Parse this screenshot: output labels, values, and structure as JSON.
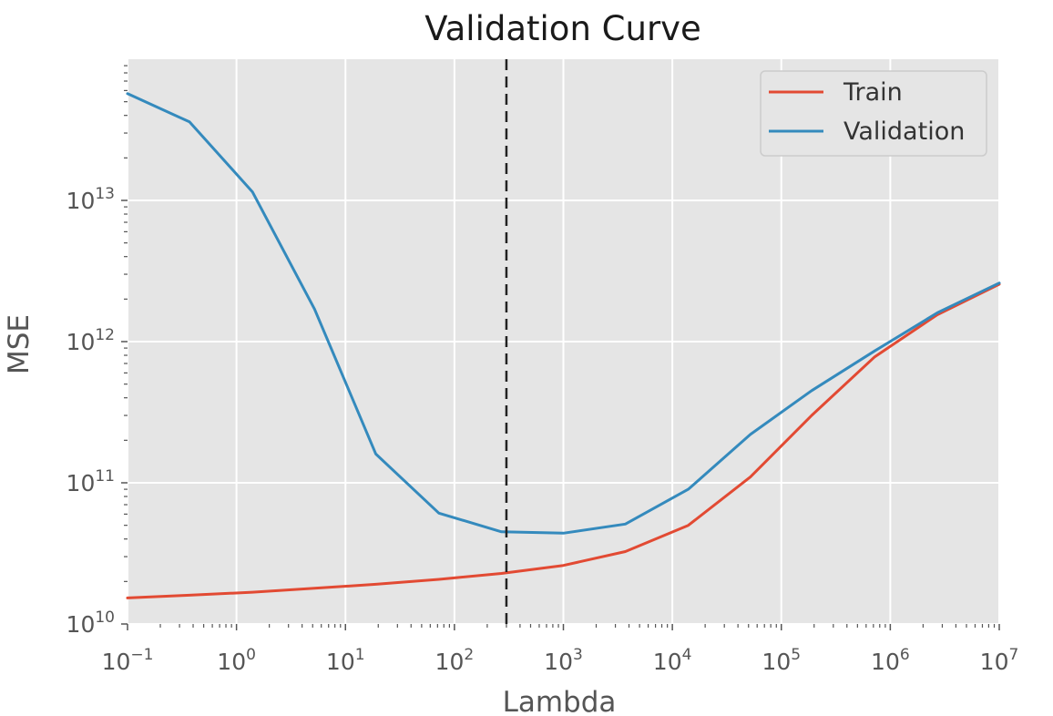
{
  "chart_data": {
    "type": "line",
    "title": "Validation Curve",
    "xlabel": "Lambda",
    "ylabel": "MSE",
    "xscale": "log",
    "yscale": "log",
    "xlim": [
      0.1,
      10000000
    ],
    "ylim": [
      10000000000,
      100000000000000
    ],
    "x_ticks": [
      {
        "base": "10",
        "exp": "−1",
        "value": 0.1
      },
      {
        "base": "10",
        "exp": "0",
        "value": 1
      },
      {
        "base": "10",
        "exp": "1",
        "value": 10
      },
      {
        "base": "10",
        "exp": "2",
        "value": 100
      },
      {
        "base": "10",
        "exp": "3",
        "value": 1000
      },
      {
        "base": "10",
        "exp": "4",
        "value": 10000
      },
      {
        "base": "10",
        "exp": "5",
        "value": 100000
      },
      {
        "base": "10",
        "exp": "6",
        "value": 1000000
      },
      {
        "base": "10",
        "exp": "7",
        "value": 10000000
      }
    ],
    "y_ticks": [
      {
        "base": "10",
        "exp": "10",
        "value": 10000000000
      },
      {
        "base": "10",
        "exp": "11",
        "value": 100000000000
      },
      {
        "base": "10",
        "exp": "12",
        "value": 1000000000000
      },
      {
        "base": "10",
        "exp": "13",
        "value": 10000000000000
      }
    ],
    "vline": {
      "x": 300,
      "style": "dashed",
      "color": "#222222"
    },
    "grid": true,
    "legend": "top-right",
    "series": [
      {
        "name": "Train",
        "color": "#e24a33",
        "x": [
          0.1,
          0.37,
          1.4,
          5.2,
          19,
          72,
          270,
          1000,
          3700,
          14000,
          52000,
          190000,
          720000,
          2700000,
          10000000
        ],
        "y": [
          15300000000,
          16000000000,
          16800000000,
          17900000000,
          19100000000,
          20700000000,
          22800000000,
          26000000000,
          32600000000,
          50000000000,
          110000000000,
          300000000000,
          780000000000,
          1550000000000,
          2550000000000
        ]
      },
      {
        "name": "Validation",
        "color": "#348abd",
        "x": [
          0.1,
          0.37,
          1.4,
          5.2,
          19,
          72,
          270,
          1000,
          3700,
          14000,
          52000,
          190000,
          720000,
          2700000,
          10000000
        ],
        "y": [
          57000000000000,
          36000000000000,
          11500000000000,
          1700000000000,
          160000000000,
          61000000000,
          45000000000,
          44000000000,
          51000000000,
          90000000000,
          220000000000,
          450000000000,
          860000000000,
          1600000000000,
          2600000000000
        ]
      }
    ]
  }
}
